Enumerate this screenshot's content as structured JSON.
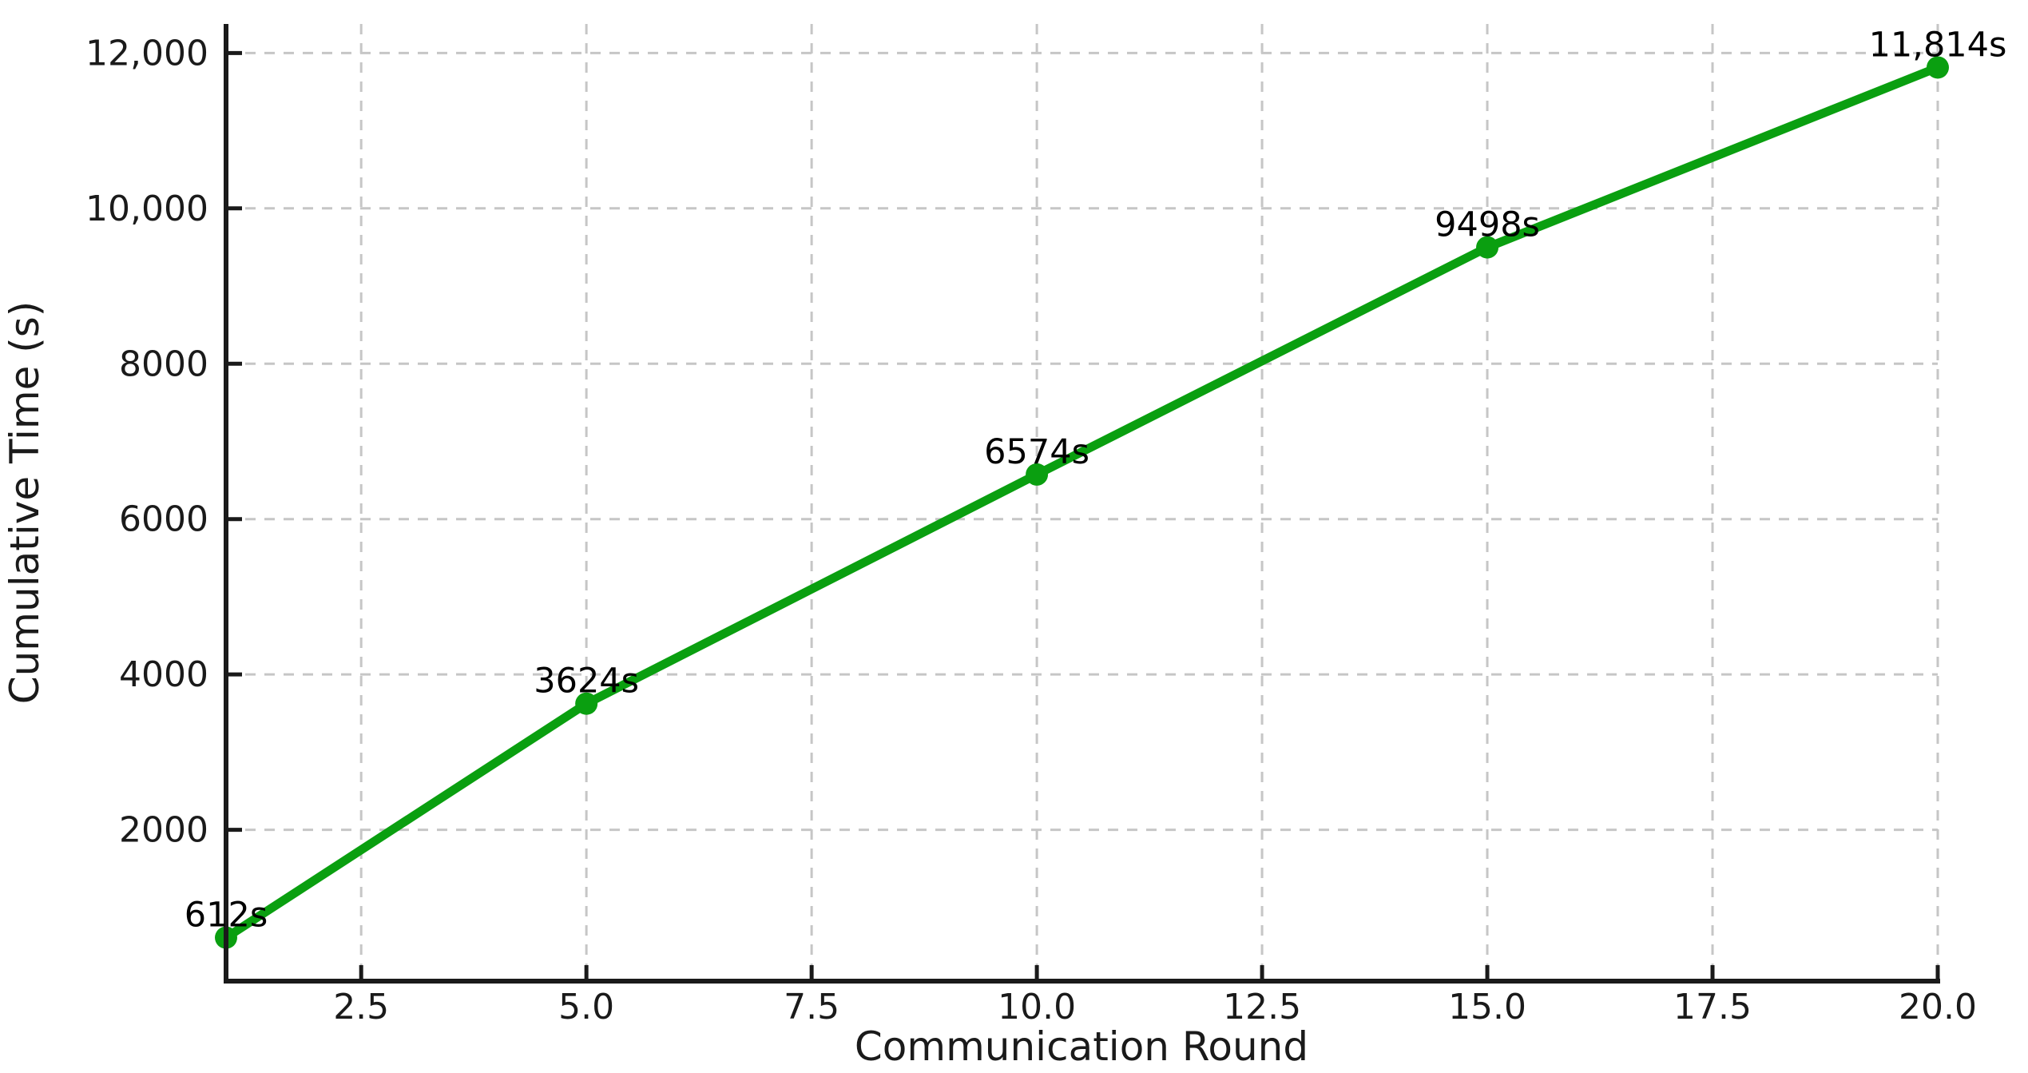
{
  "chart_data": {
    "type": "line",
    "title": "",
    "xlabel": "Communication Round",
    "ylabel": "Cumulative Time (s)",
    "x": [
      1,
      5,
      10,
      15,
      20
    ],
    "y": [
      612,
      3624,
      6574,
      9498,
      11814
    ],
    "point_labels": [
      "612s",
      "3624s",
      "6574s",
      "9498s",
      "11,814s"
    ],
    "x_ticks": [
      2.5,
      5.0,
      7.5,
      10.0,
      12.5,
      15.0,
      17.5,
      20.0
    ],
    "x_tick_labels": [
      "2.5",
      "5.0",
      "7.5",
      "10.0",
      "12.5",
      "15.0",
      "17.5",
      "20.0"
    ],
    "y_ticks": [
      2000,
      4000,
      6000,
      8000,
      10000,
      12000
    ],
    "y_tick_labels": [
      "2000",
      "4000",
      "6000",
      "8000",
      "10,000",
      "12,000"
    ],
    "xlim": [
      1,
      20
    ],
    "ylim": [
      52,
      12374
    ],
    "grid": true,
    "legend": null,
    "colors": {
      "line": "#0a9f10",
      "marker": "#0a9f10",
      "grid": "#c6c6c6",
      "axis": "#1a1a1a",
      "text": "#1a1a1a"
    }
  }
}
